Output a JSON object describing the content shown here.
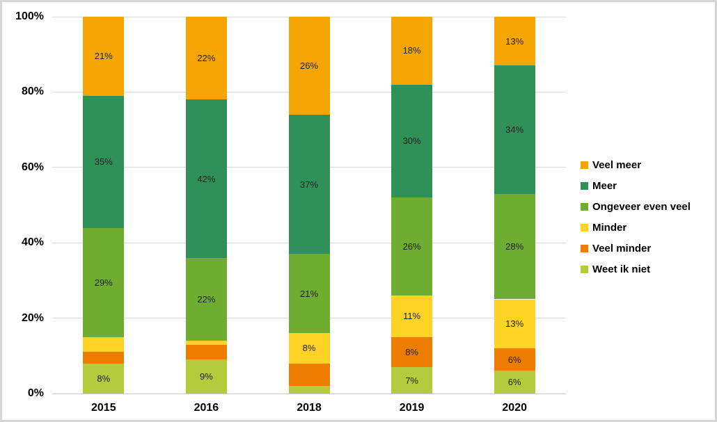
{
  "chart_data": {
    "type": "bar",
    "subtype": "stacked-percentage",
    "title": "",
    "xlabel": "",
    "ylabel": "",
    "grid": true,
    "categories": [
      "2015",
      "2016",
      "2018",
      "2019",
      "2020"
    ],
    "stack_order": "bottom-to-top",
    "series": [
      {
        "name": "Weet ik niet",
        "color": "#b4cb3c",
        "values": [
          8,
          9,
          2,
          7,
          6
        ],
        "data_labels": [
          "8%",
          "9%",
          "",
          "7%",
          "6%"
        ]
      },
      {
        "name": "Veel minder",
        "color": "#ed7d00",
        "values": [
          3,
          4,
          6,
          8,
          6
        ],
        "data_labels": [
          "",
          "",
          "",
          "8%",
          "6%"
        ]
      },
      {
        "name": "Minder",
        "color": "#ffd226",
        "values": [
          4,
          1,
          8,
          11,
          13
        ],
        "data_labels": [
          "",
          "",
          "8%",
          "11%",
          "13%"
        ]
      },
      {
        "name": "Ongeveer even veel",
        "color": "#6fad30",
        "values": [
          29,
          22,
          21,
          26,
          28
        ],
        "data_labels": [
          "29%",
          "22%",
          "21%",
          "26%",
          "28%"
        ]
      },
      {
        "name": "Meer",
        "color": "#2f9158",
        "values": [
          35,
          42,
          37,
          30,
          34
        ],
        "data_labels": [
          "35%",
          "42%",
          "37%",
          "30%",
          "34%"
        ]
      },
      {
        "name": "Veel meer",
        "color": "#f5a605",
        "values": [
          21,
          22,
          26,
          18,
          13
        ],
        "data_labels": [
          "21%",
          "22%",
          "26%",
          "18%",
          "13%"
        ]
      }
    ],
    "y_axis": {
      "min": 0,
      "max": 100,
      "tick_step": 20,
      "tick_labels": [
        "0%",
        "20%",
        "40%",
        "60%",
        "80%",
        "100%"
      ]
    },
    "legend": {
      "position": "right",
      "items": [
        {
          "label": "Veel meer",
          "color": "#f5a605"
        },
        {
          "label": "Meer",
          "color": "#2f9158"
        },
        {
          "label": "Ongeveer even veel",
          "color": "#6fad30"
        },
        {
          "label": "Minder",
          "color": "#ffd226"
        },
        {
          "label": "Veel minder",
          "color": "#ed7d00"
        },
        {
          "label": "Weet ik niet",
          "color": "#b4cb3c"
        }
      ]
    },
    "colors": {
      "gridline": "#d9d9d9",
      "baseline": "#c9c9c9",
      "text": "#000000",
      "data_label_text": "#1f1f1f",
      "background": "#ffffff",
      "frame_border": "#d6d6d6"
    }
  }
}
